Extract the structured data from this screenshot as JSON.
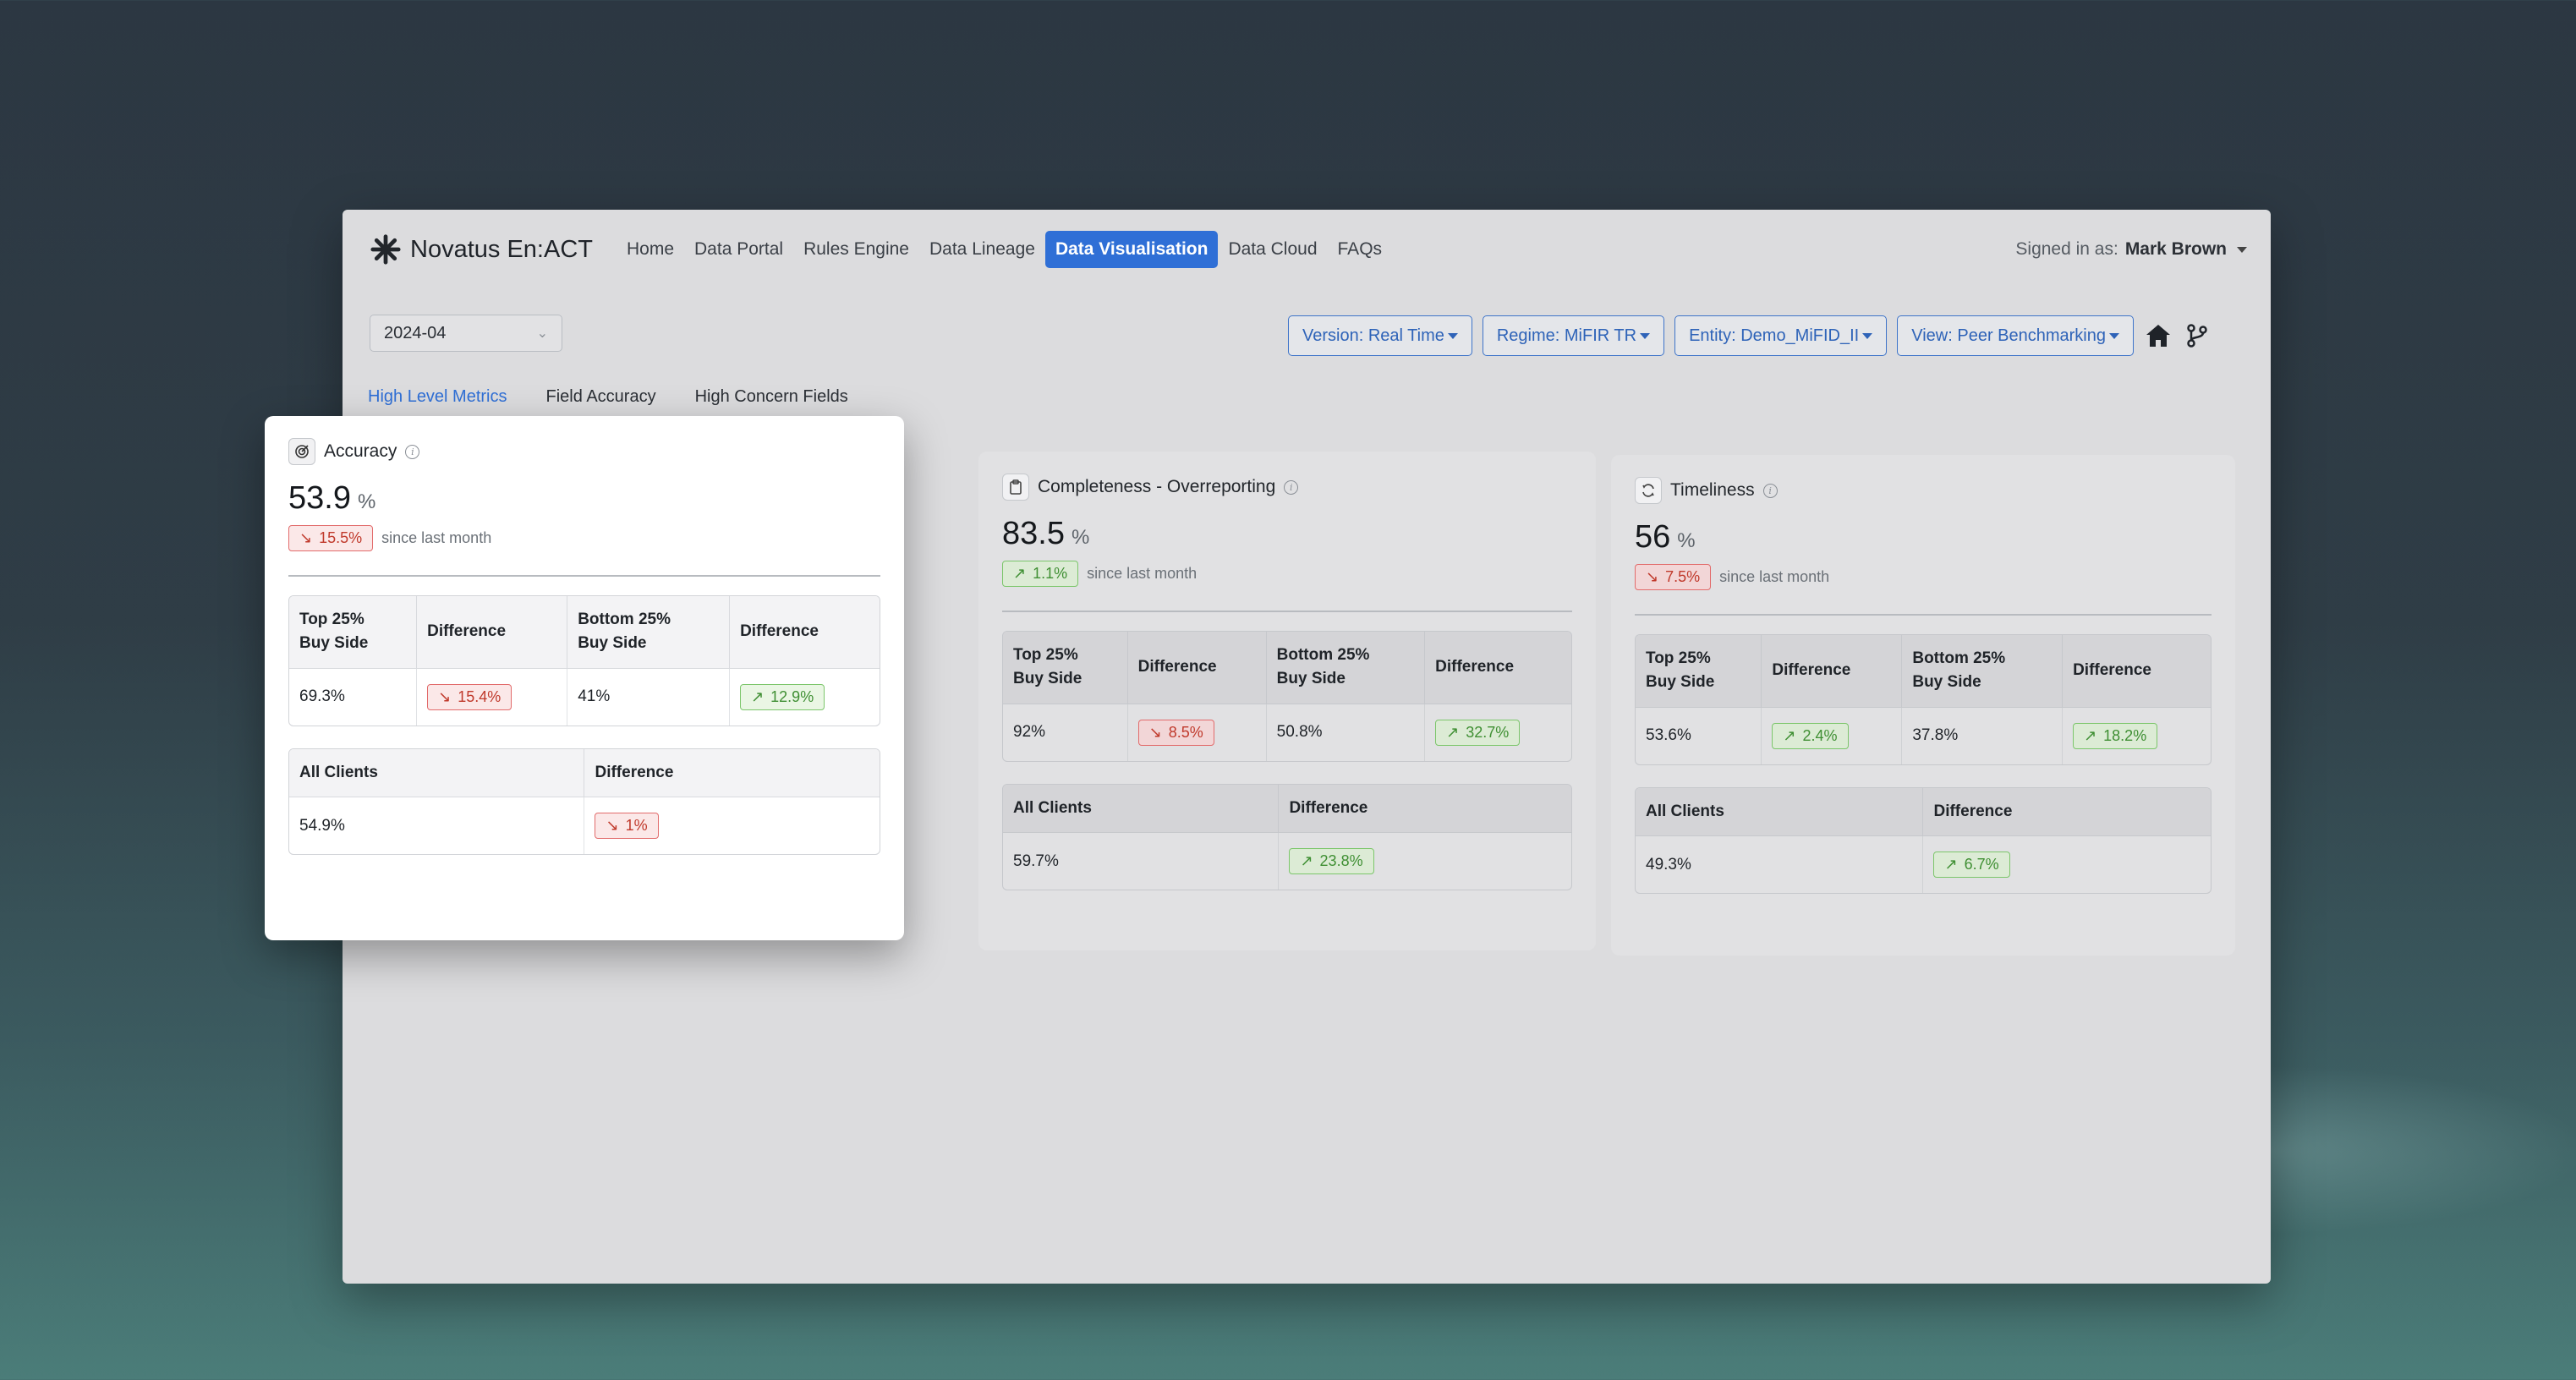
{
  "app": {
    "brand": "Novatus En:ACT"
  },
  "nav": {
    "items": [
      {
        "label": "Home",
        "active": false
      },
      {
        "label": "Data Portal",
        "active": false
      },
      {
        "label": "Rules Engine",
        "active": false
      },
      {
        "label": "Data Lineage",
        "active": false
      },
      {
        "label": "Data Visualisation",
        "active": true
      },
      {
        "label": "Data Cloud",
        "active": false
      },
      {
        "label": "FAQs",
        "active": false
      }
    ],
    "signed_in_prefix": "Signed in as:",
    "user": "Mark Brown"
  },
  "toolbar": {
    "period": "2024-04",
    "version": "Version: Real Time",
    "regime": "Regime: MiFIR TR",
    "entity": "Entity: Demo_MiFID_II",
    "view": "View: Peer Benchmarking"
  },
  "tabs": [
    {
      "label": "High Level Metrics",
      "active": true
    },
    {
      "label": "Field Accuracy",
      "active": false
    },
    {
      "label": "High Concern Fields",
      "active": false
    }
  ],
  "labels": {
    "since": "since last month",
    "top": "Top 25%",
    "bottom": "Bottom 25%",
    "buy_side": "Buy Side",
    "difference": "Difference",
    "all_clients": "All Clients",
    "unit": "%"
  },
  "cards": [
    {
      "title": "Accuracy",
      "value": "53.9",
      "delta": "15.5%",
      "delta_dir": "down",
      "top_value": "69.3%",
      "top_diff": "15.4%",
      "top_dir": "down",
      "bottom_value": "41%",
      "bottom_diff": "12.9%",
      "bottom_dir": "up",
      "all_value": "54.9%",
      "all_diff": "1%",
      "all_dir": "down"
    },
    {
      "title": "Completeness - Overreporting",
      "value": "83.5",
      "delta": "1.1%",
      "delta_dir": "up",
      "top_value": "92%",
      "top_diff": "8.5%",
      "top_dir": "down",
      "bottom_value": "50.8%",
      "bottom_diff": "32.7%",
      "bottom_dir": "up",
      "all_value": "59.7%",
      "all_diff": "23.8%",
      "all_dir": "up"
    },
    {
      "title": "Timeliness",
      "value": "56",
      "delta": "7.5%",
      "delta_dir": "down",
      "top_value": "53.6%",
      "top_diff": "2.4%",
      "top_dir": "up",
      "bottom_value": "37.8%",
      "bottom_diff": "18.2%",
      "bottom_dir": "up",
      "all_value": "49.3%",
      "all_diff": "6.7%",
      "all_dir": "up"
    }
  ],
  "colors": {
    "accent": "#2f6fd6",
    "down": "#c0392b",
    "up": "#3f8f33"
  }
}
